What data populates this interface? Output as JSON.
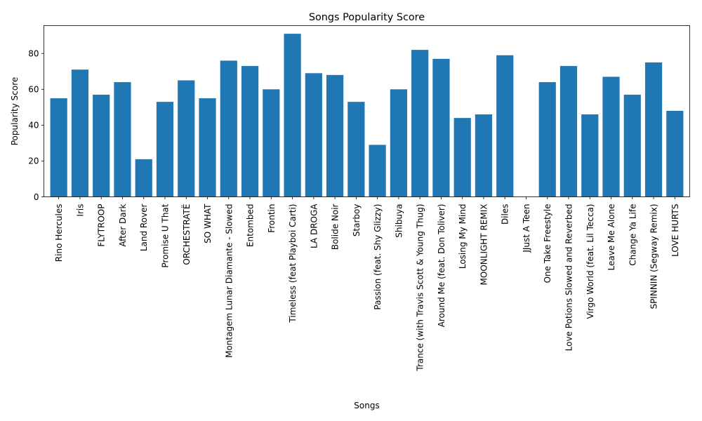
{
  "chart_data": {
    "type": "bar",
    "title": "Songs Popularity Score",
    "xlabel": "Songs",
    "ylabel": "Popularity Score",
    "ylim": [
      0,
      95.55
    ],
    "yticks": [
      0,
      20,
      40,
      60,
      80
    ],
    "grid": false,
    "bar_color": "#1f77b4",
    "categories": [
      "Rino Hercules",
      "Iris",
      "FLYTROOP",
      "After Dark",
      "Land Rover",
      "Promise U That",
      "ORCHESTRATË",
      "SO WHAT",
      "Montagem Lunar Diamante - Slowed",
      "Entombed",
      "Frontin",
      "Timeless (feat Playboi Carti)",
      "LA DROGA",
      "Bolide Noir",
      "Starboy",
      "Passion (feat. Shy Glizzy)",
      "Shibuya",
      "Trance (with Travis Scott & Young Thug)",
      "Around Me (feat. Don Toliver)",
      "Losing My Mind",
      "MOONLIGHT REMIX",
      "Diles",
      "JJust A Teen",
      "One Take Freestyle",
      "Love Potions Slowed and Reverbed",
      "Virgo World (feat. Lil Tecca)",
      "Leave Me Alone",
      "Change Ya Life",
      "SPINNIN (Segway Remix)",
      "LOVE HURTS"
    ],
    "values": [
      55,
      71,
      57,
      64,
      21,
      53,
      65,
      55,
      76,
      73,
      60,
      91,
      69,
      68,
      53,
      29,
      60,
      82,
      77,
      44,
      46,
      79,
      0,
      64,
      73,
      46,
      67,
      57,
      75,
      48
    ]
  }
}
